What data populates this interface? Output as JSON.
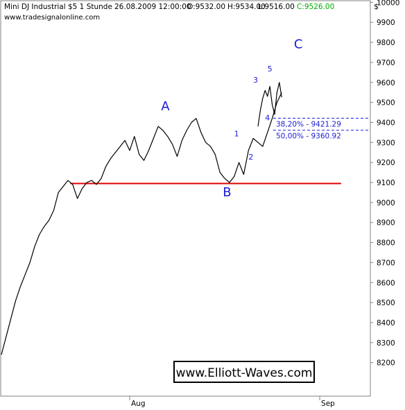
{
  "header": {
    "instrument": "Mini DJ Industrial $5 1 Stunde",
    "datetime": "26.08.2009 12:00:00",
    "open": "O:9532.00",
    "high": "H:9534.00",
    "low": "L:9516.00",
    "close": "C:9526.00",
    "source": "www.tradesignalonline.com",
    "currency_symbol": "$"
  },
  "watermark": "www.Elliott-Waves.com",
  "colors": {
    "price": "#000000",
    "close_text": "#00aa00",
    "wave_labels": "#1a1ad6",
    "support_line": "#e00000",
    "fib_lines": "#1a1ad6",
    "grid": "#cccccc"
  },
  "chart_data": {
    "type": "line",
    "title": "Mini DJ Industrial $5 1 Stunde",
    "ylim": [
      8150,
      10100
    ],
    "y_ticks": [
      8200,
      8300,
      8400,
      8500,
      8600,
      8700,
      8800,
      8900,
      9000,
      9100,
      9200,
      9300,
      9400,
      9500,
      9600,
      9700,
      9800,
      9900,
      10000
    ],
    "x_tick_labels": [
      {
        "label": "Aug",
        "x": 54
      },
      {
        "label": "Sep",
        "x": 134
      }
    ],
    "x_range": [
      0,
      155
    ],
    "series": [
      {
        "x": [
          0,
          2,
          4,
          6,
          8,
          10,
          12,
          14,
          16,
          18,
          20,
          22,
          24,
          26,
          28,
          30,
          32,
          34,
          36,
          38,
          40,
          42,
          44,
          46,
          48,
          50,
          52,
          54,
          56,
          58,
          60,
          62,
          64,
          66,
          68,
          70,
          72,
          74,
          76,
          78,
          80,
          82,
          84,
          86,
          88,
          90,
          92,
          94,
          96,
          98,
          100,
          102,
          104,
          106,
          108,
          110,
          112,
          114,
          116,
          118
        ],
        "values": [
          8240,
          8330,
          8420,
          8510,
          8580,
          8640,
          8700,
          8780,
          8840,
          8880,
          8910,
          8960,
          9050,
          9080,
          9110,
          9090,
          9020,
          9070,
          9100,
          9110,
          9090,
          9120,
          9180,
          9220,
          9250,
          9280,
          9310,
          9260,
          9330,
          9240,
          9210,
          9260,
          9320,
          9380,
          9360,
          9330,
          9290,
          9230,
          9310,
          9360,
          9400,
          9420,
          9350,
          9300,
          9280,
          9240,
          9150,
          9120,
          9100,
          9130,
          9200,
          9140,
          9260,
          9320,
          9300,
          9280,
          9350,
          9420,
          9500,
          9550
        ]
      },
      {
        "x": [
          108,
          109,
          110,
          111,
          112,
          113,
          114,
          115,
          116,
          117,
          118
        ],
        "values": [
          9380,
          9460,
          9520,
          9560,
          9530,
          9580,
          9490,
          9440,
          9550,
          9600,
          9526
        ]
      }
    ],
    "horizontal_lines": [
      {
        "y": 9095,
        "color": "#e00000",
        "x_start": 29,
        "x_end": 143
      }
    ],
    "fib_levels": [
      {
        "label": "38,20% - 9421.29",
        "value": 9421.29
      },
      {
        "label": "50,00% - 9360.92",
        "value": 9360.92
      }
    ],
    "wave_labels": [
      {
        "text": "A",
        "x": 69,
        "y": 9460,
        "size": "large"
      },
      {
        "text": "B",
        "x": 95,
        "y": 9030,
        "size": "large"
      },
      {
        "text": "C",
        "x": 125,
        "y": 9770,
        "size": "large"
      },
      {
        "text": "1",
        "x": 99,
        "y": 9330,
        "size": "small"
      },
      {
        "text": "2",
        "x": 105,
        "y": 9215,
        "size": "small"
      },
      {
        "text": "3",
        "x": 107,
        "y": 9600,
        "size": "small"
      },
      {
        "text": "4",
        "x": 112,
        "y": 9410,
        "size": "small"
      },
      {
        "text": "5",
        "x": 113,
        "y": 9655,
        "size": "small"
      }
    ],
    "grid": false,
    "legend": "none"
  }
}
